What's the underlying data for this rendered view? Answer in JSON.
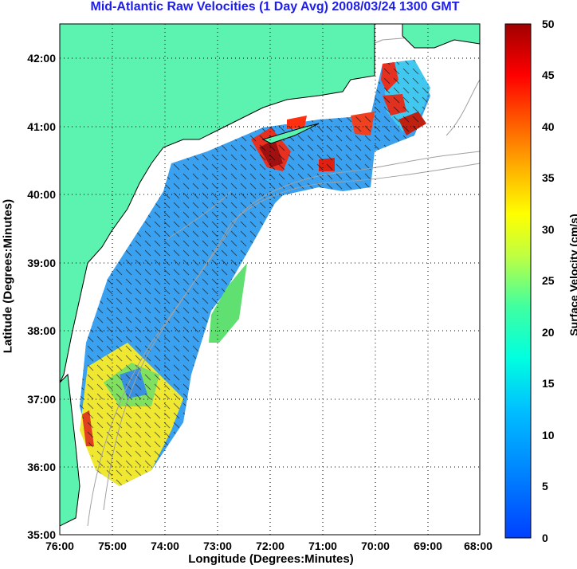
{
  "title": "Mid-Atlantic Raw Velocities (1 Day Avg) 2008/03/24 1300 GMT",
  "xlabel": "Longitude (Degrees:Minutes)",
  "ylabel": "Latitude (Degrees:Minutes)",
  "x_ticks": [
    "76:00",
    "75:00",
    "74:00",
    "73:00",
    "72:00",
    "71:00",
    "70:00",
    "69:00",
    "68:00"
  ],
  "y_ticks": [
    "35:00",
    "36:00",
    "37:00",
    "38:00",
    "39:00",
    "40:00",
    "41:00",
    "42:00"
  ],
  "colorbar": {
    "label": "Surface Velocity (cm/s)",
    "ticks": [
      "0",
      "5",
      "10",
      "15",
      "20",
      "25",
      "30",
      "35",
      "40",
      "45",
      "50"
    ],
    "range": [
      0,
      50
    ],
    "colormap": "jet"
  },
  "colors": {
    "land": "#5cf2b0",
    "title": "#1d1df0",
    "grid": "#000000",
    "bathymetry": "#a0a0a0"
  },
  "map": {
    "lon_range": [
      -76,
      -68
    ],
    "lat_range": [
      35,
      42.5
    ],
    "grid": "dotted"
  }
}
